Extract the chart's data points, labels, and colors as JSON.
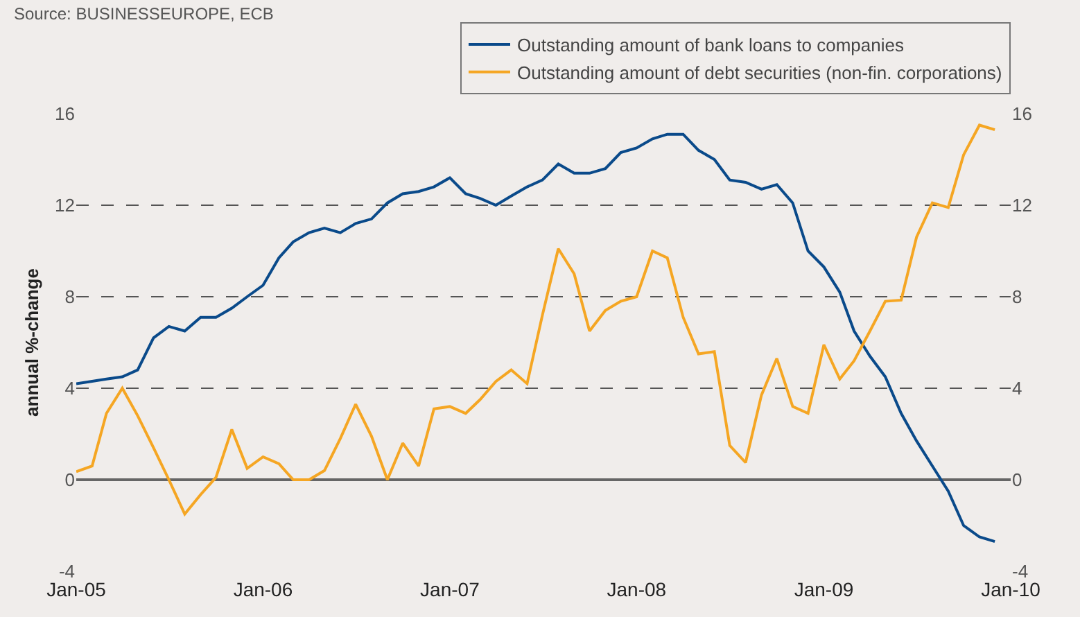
{
  "chart_data": {
    "type": "line",
    "ylabel": "annual %-change",
    "annotations": [
      "Source: BUSINESSEUROPE, ECB"
    ],
    "x": [
      "2005-01",
      "2005-02",
      "2005-03",
      "2005-04",
      "2005-05",
      "2005-06",
      "2005-07",
      "2005-08",
      "2005-09",
      "2005-10",
      "2005-11",
      "2005-12",
      "2006-01",
      "2006-02",
      "2006-03",
      "2006-04",
      "2006-05",
      "2006-06",
      "2006-07",
      "2006-08",
      "2006-09",
      "2006-10",
      "2006-11",
      "2006-12",
      "2007-01",
      "2007-02",
      "2007-03",
      "2007-04",
      "2007-05",
      "2007-06",
      "2007-07",
      "2007-08",
      "2007-09",
      "2007-10",
      "2007-11",
      "2007-12",
      "2008-01",
      "2008-02",
      "2008-03",
      "2008-04",
      "2008-05",
      "2008-06",
      "2008-07",
      "2008-08",
      "2008-09",
      "2008-10",
      "2008-11",
      "2008-12",
      "2009-01",
      "2009-02",
      "2009-03",
      "2009-04",
      "2009-05",
      "2009-06",
      "2009-07",
      "2009-08",
      "2009-09",
      "2009-10",
      "2009-11",
      "2009-12"
    ],
    "series": [
      {
        "name": "Outstanding amount of bank loans to companies",
        "color": "#0a4a8a",
        "values": [
          4.2,
          4.3,
          4.4,
          4.5,
          4.8,
          6.2,
          6.7,
          6.5,
          7.1,
          7.1,
          7.5,
          8.0,
          8.5,
          9.7,
          10.4,
          10.8,
          11.0,
          10.8,
          11.2,
          11.4,
          12.1,
          12.5,
          12.6,
          12.8,
          13.2,
          12.5,
          12.3,
          12.0,
          12.4,
          12.8,
          13.1,
          13.8,
          13.4,
          13.4,
          13.6,
          14.3,
          14.5,
          14.9,
          15.1,
          15.1,
          14.4,
          14.0,
          13.1,
          13.0,
          12.7,
          12.9,
          12.1,
          10.0,
          9.3,
          8.2,
          6.5,
          5.4,
          4.5,
          2.9,
          1.7,
          0.6,
          -0.5,
          -2.0,
          -2.5,
          -2.7
        ]
      },
      {
        "name": "Outstanding amount of debt securities (non-fin. corporations)",
        "color": "#f5a623",
        "values": [
          0.35,
          0.6,
          2.9,
          4.0,
          2.8,
          1.4,
          0.0,
          -1.5,
          -0.65,
          0.1,
          2.2,
          0.5,
          1.0,
          0.7,
          0.0,
          0.0,
          0.4,
          1.8,
          3.3,
          1.9,
          0.0,
          1.6,
          0.6,
          3.1,
          3.2,
          2.9,
          3.5,
          4.3,
          4.8,
          4.2,
          7.2,
          10.1,
          9.0,
          6.5,
          7.4,
          7.8,
          8.0,
          10.0,
          9.7,
          7.1,
          5.5,
          5.6,
          1.5,
          0.75,
          3.7,
          5.3,
          3.2,
          2.9,
          5.9,
          4.4,
          5.2,
          6.5,
          7.8,
          7.85,
          10.6,
          12.1,
          11.9,
          14.2,
          15.5,
          15.3
        ]
      }
    ],
    "xlim": [
      "2005-01",
      "2010-01"
    ],
    "xticks": [
      {
        "value": "2005-01",
        "label": "Jan-05"
      },
      {
        "value": "2006-01",
        "label": "Jan-06"
      },
      {
        "value": "2007-01",
        "label": "Jan-07"
      },
      {
        "value": "2008-01",
        "label": "Jan-08"
      },
      {
        "value": "2009-01",
        "label": "Jan-09"
      },
      {
        "value": "2010-01",
        "label": "Jan-10"
      }
    ],
    "ylim": [
      -4,
      16
    ],
    "yticks": [
      -4,
      0,
      4,
      8,
      12,
      16
    ],
    "y2lim": [
      -4,
      16
    ],
    "y2ticks": [
      -4,
      0,
      4,
      8,
      12,
      16
    ],
    "grid": "y",
    "legend": "top right",
    "marker": "none",
    "line_style": "solid"
  }
}
